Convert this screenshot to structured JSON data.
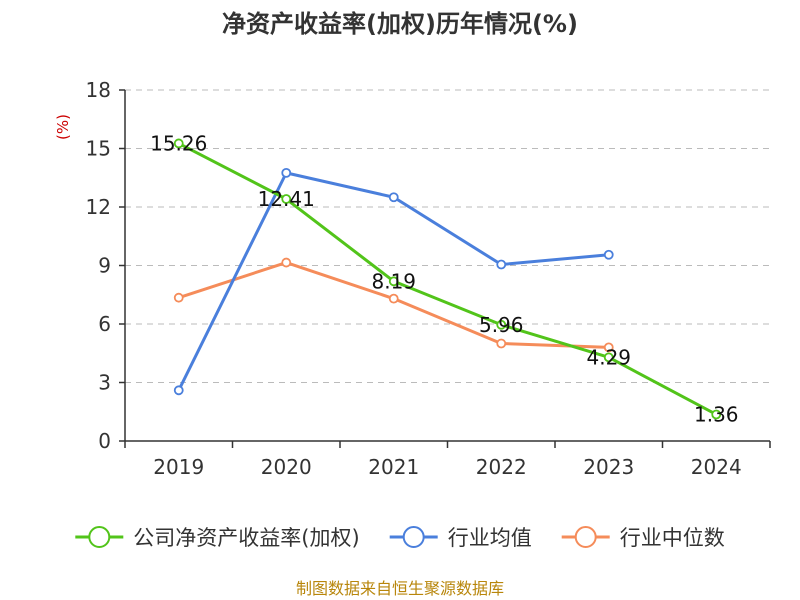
{
  "chart_data": {
    "type": "line",
    "title": "净资产收益率(加权)历年情况(%)",
    "ylabel": "(%)",
    "xlabel": "",
    "categories": [
      "2019",
      "2020",
      "2021",
      "2022",
      "2023",
      "2024"
    ],
    "ylim": [
      0,
      18
    ],
    "yticks": [
      "0",
      "3",
      "6",
      "9",
      "12",
      "15",
      "18"
    ],
    "grid": true,
    "legend_position": "bottom",
    "series": [
      {
        "name": "公司净资产收益率(加权)",
        "color": "#52c41a",
        "values": [
          15.26,
          12.41,
          8.19,
          5.96,
          4.29,
          1.36
        ],
        "labels": [
          "15.26",
          "12.41",
          "8.19",
          "5.96",
          "4.29",
          "1.36"
        ]
      },
      {
        "name": "行业均值",
        "color": "#4a7fdc",
        "values": [
          2.6,
          13.75,
          12.5,
          9.05,
          9.55,
          null
        ]
      },
      {
        "name": "行业中位数",
        "color": "#f58c5a",
        "values": [
          7.35,
          9.15,
          7.3,
          5.0,
          4.8,
          null
        ]
      }
    ]
  },
  "source": "制图数据来自恒生聚源数据库"
}
